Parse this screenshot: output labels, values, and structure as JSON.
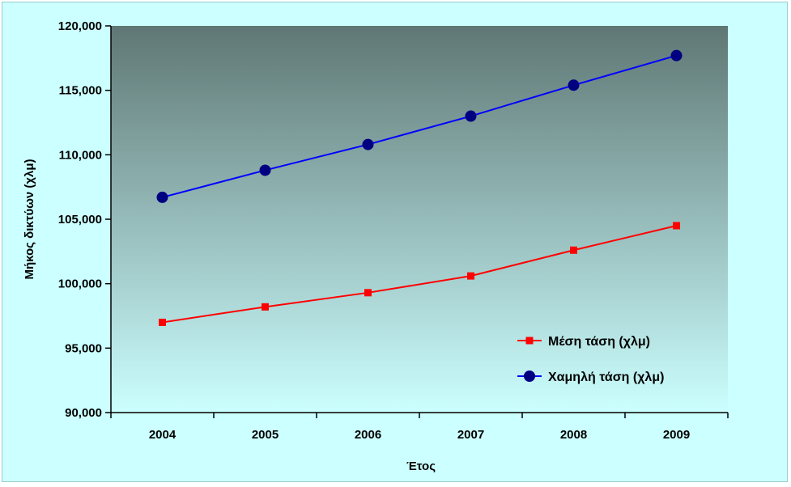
{
  "chart_data": {
    "type": "line",
    "title": "",
    "xlabel": "Έτος",
    "ylabel": "Μήκος δικτύων (χλμ)",
    "categories": [
      "2004",
      "2005",
      "2006",
      "2007",
      "2008",
      "2009"
    ],
    "ylim": [
      90000,
      120000
    ],
    "yticks": [
      90000,
      95000,
      100000,
      105000,
      110000,
      115000,
      120000
    ],
    "ytick_labels": [
      "90,000",
      "95,000",
      "100,000",
      "105,000",
      "110,000",
      "115,000",
      "120,000"
    ],
    "grid": false,
    "legend_position": "bottom-right",
    "series": [
      {
        "name": "Μέση τάση (χλμ)",
        "values": [
          97000,
          98200,
          99300,
          100600,
          102600,
          104500
        ],
        "color": "#ff0000",
        "line_color": "#ff0000",
        "marker": "square",
        "marker_color": "#ff0000"
      },
      {
        "name": "Χαμηλή τάση (χλμ)",
        "values": [
          106700,
          108800,
          110800,
          113000,
          115400,
          117700
        ],
        "color": "#0000cc",
        "line_color": "#0000ff",
        "marker": "circle",
        "marker_color": "#000080"
      }
    ],
    "plot_background": {
      "gradient_top": "#5f7774",
      "gradient_bottom": "#ccffff"
    },
    "chart_background": "#ccffff"
  }
}
